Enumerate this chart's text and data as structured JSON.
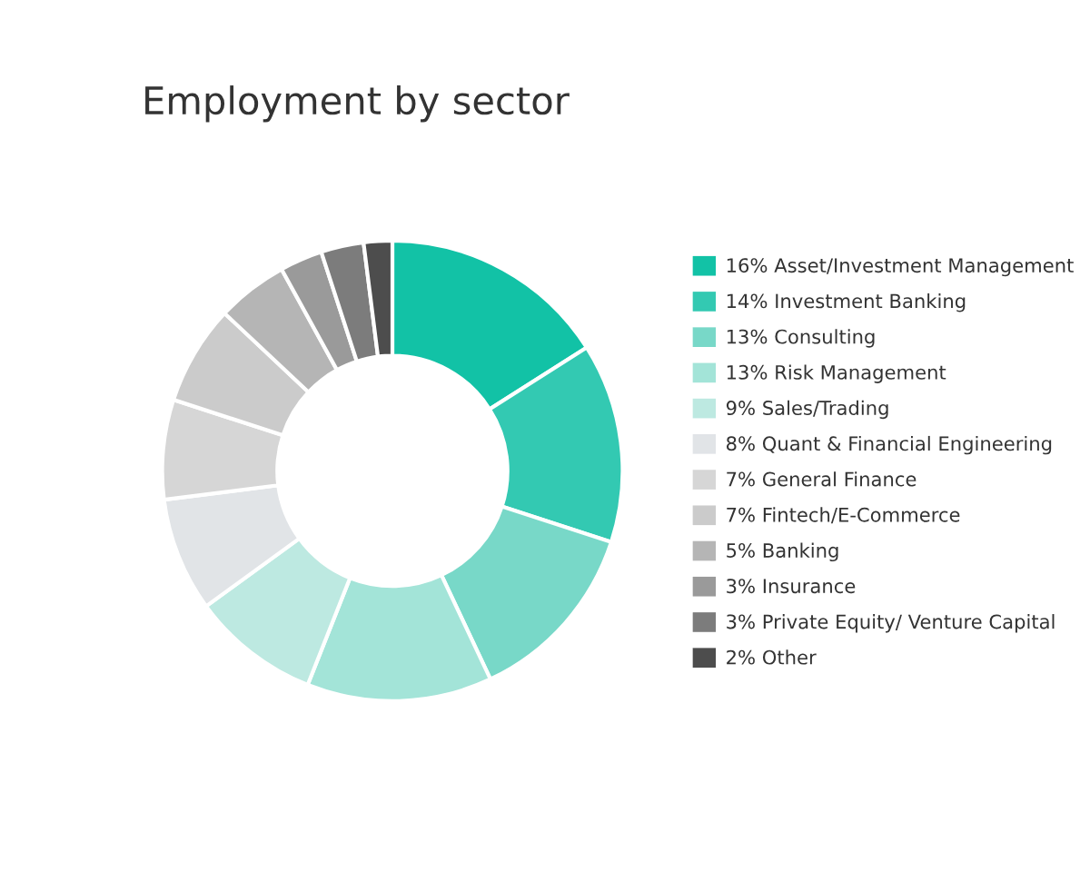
{
  "chart_data": {
    "type": "donut",
    "title": "Employment by sector",
    "categories": [
      "16% Asset/Investment Management",
      "14% Investment Banking",
      "13% Consulting",
      "13% Risk Management",
      "9% Sales/Trading",
      "8% Quant & Financial Engineering",
      "7% General Finance",
      "7% Fintech/E-Commerce",
      "5% Banking",
      "3% Insurance",
      "3% Private Equity/ Venture Capital",
      "2% Other"
    ],
    "values": [
      16,
      14,
      13,
      13,
      9,
      8,
      7,
      7,
      5,
      3,
      3,
      2
    ],
    "colors": [
      "#12c2a6",
      "#33c9b2",
      "#78d8c8",
      "#a3e4d8",
      "#bde9e1",
      "#e1e4e7",
      "#d6d6d6",
      "#cbcbcb",
      "#b5b5b5",
      "#9a9a9a",
      "#7c7c7c",
      "#4d4d4d"
    ],
    "legend": "right"
  }
}
